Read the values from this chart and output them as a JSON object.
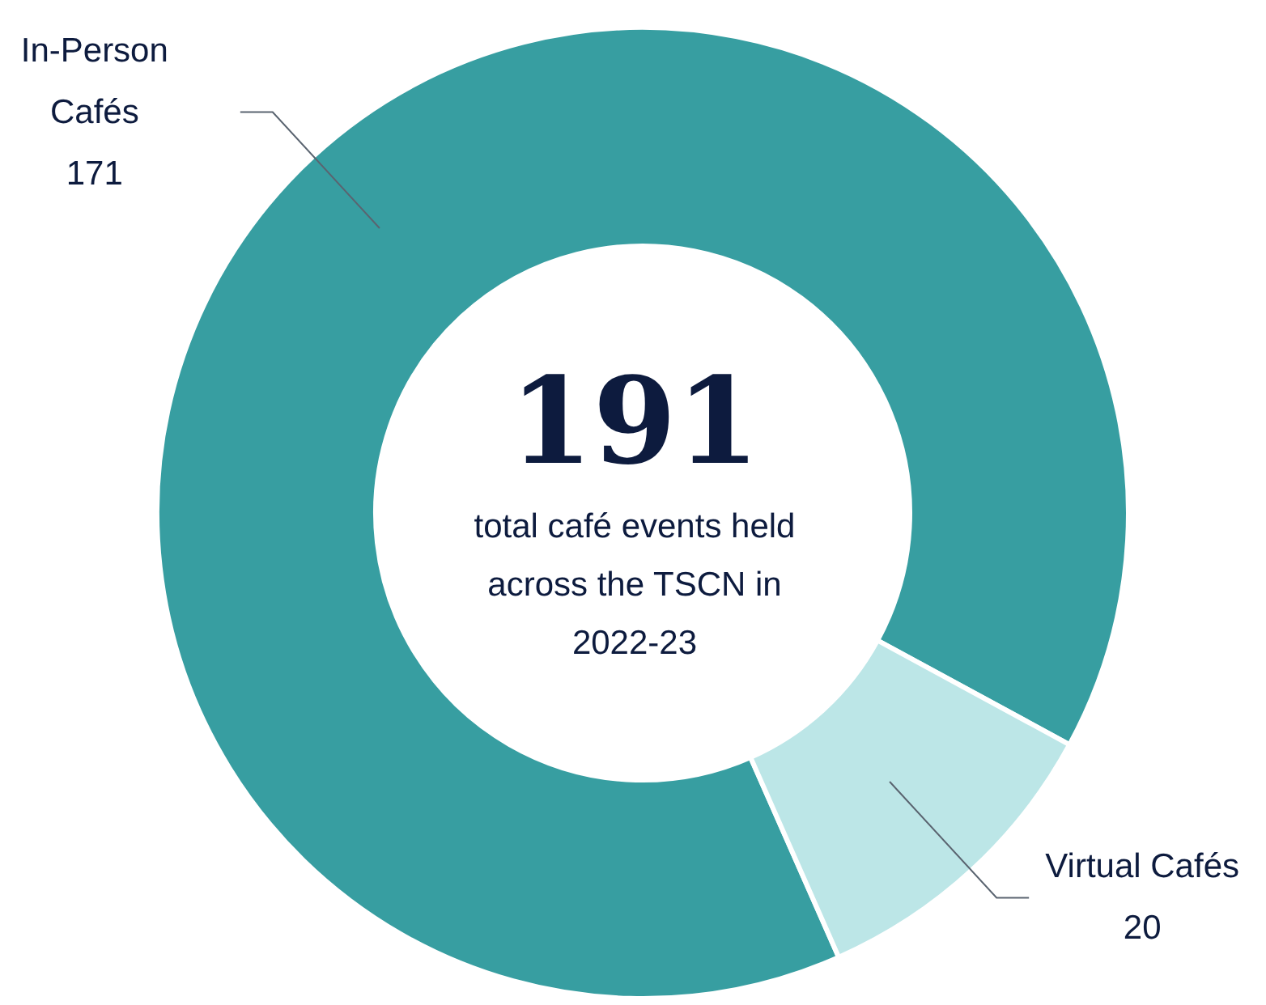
{
  "chart_data": {
    "type": "donut",
    "title": "191",
    "subtitle": "total café events held across the TSCN in 2022-23",
    "categories": [
      "In-Person Cafés",
      "Virtual Cafés"
    ],
    "values": [
      171,
      20
    ],
    "colors": [
      "#379ea1",
      "#bce6e7"
    ],
    "data_labels": true
  }
}
